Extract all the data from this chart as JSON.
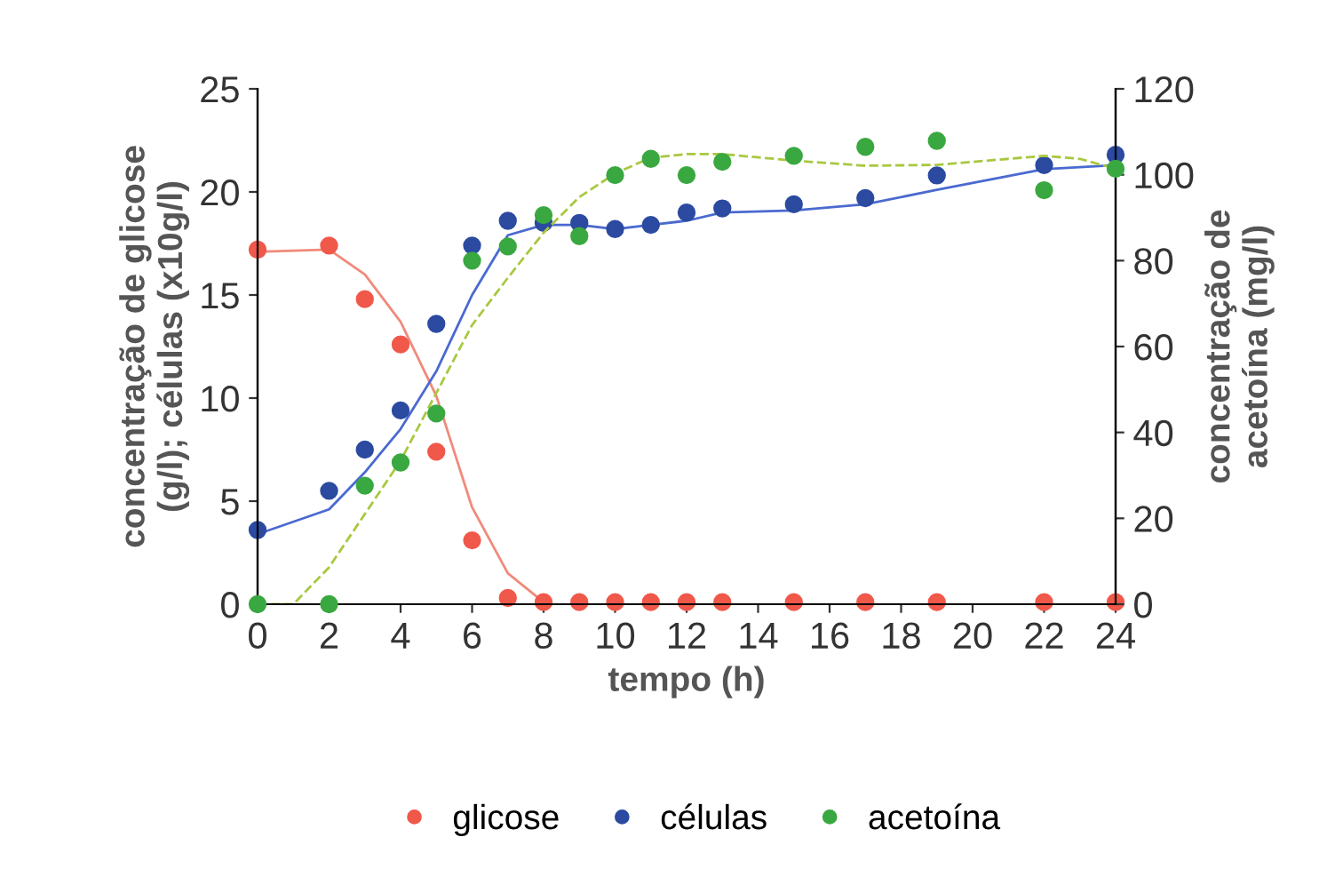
{
  "chart_data": {
    "type": "scatter",
    "xlabel": "tempo (h)",
    "ylabel": "concentração de glicose\n(g/l); células (x10g/l)",
    "y2label": "concentração de\nacetoína (mg/l)",
    "xlim": [
      0,
      24
    ],
    "xticks": [
      0,
      2,
      4,
      6,
      8,
      10,
      12,
      14,
      16,
      18,
      20,
      22,
      24
    ],
    "ylim": [
      0,
      25
    ],
    "yticks": [
      0,
      5,
      10,
      15,
      20,
      25
    ],
    "y2lim": [
      0,
      120
    ],
    "y2ticks": [
      0,
      20,
      40,
      60,
      80,
      100,
      120
    ],
    "grid": false,
    "legend": "bottom",
    "marker": "circle",
    "series": [
      {
        "name": "glicose",
        "color": "#f0584a",
        "x": [
          0,
          2,
          3,
          4,
          5,
          6,
          7,
          8,
          9,
          10,
          11,
          12,
          13,
          15,
          17,
          19,
          22,
          24
        ],
        "values": [
          17.2,
          17.4,
          14.8,
          12.6,
          7.4,
          3.1,
          0.3,
          0.1,
          0.1,
          0.1,
          0.1,
          0.1,
          0.1,
          0.1,
          0.1,
          0.1,
          0.1,
          0.1
        ]
      },
      {
        "name": "células",
        "color": "#2b4aa0",
        "x": [
          0,
          2,
          3,
          4,
          5,
          6,
          7,
          8,
          9,
          10,
          11,
          12,
          13,
          15,
          17,
          19,
          22,
          24
        ],
        "values": [
          3.6,
          5.5,
          7.5,
          9.4,
          13.6,
          17.4,
          18.6,
          18.5,
          18.5,
          18.2,
          18.4,
          19.0,
          19.2,
          19.4,
          19.7,
          20.8,
          21.3,
          21.8
        ]
      },
      {
        "name": "acetoína",
        "color": "#3aa840",
        "axis": "y2",
        "x": [
          0,
          2,
          3,
          4,
          5,
          6,
          7,
          8,
          9,
          10,
          11,
          12,
          13,
          15,
          17,
          19,
          22,
          24
        ],
        "values": [
          0,
          0,
          27.6,
          33.0,
          44.4,
          80.0,
          83.3,
          90.6,
          85.7,
          99.9,
          103.7,
          99.9,
          103.0,
          104.4,
          106.5,
          107.9,
          96.4,
          101.4
        ]
      },
      {
        "type": "line",
        "color": "#f08a7a",
        "line_style": "solid",
        "marker": "none",
        "x": [
          0,
          2,
          3,
          4,
          5,
          6,
          7,
          8
        ],
        "values": [
          17.1,
          17.2,
          16.0,
          13.7,
          10.1,
          4.7,
          1.5,
          0.1
        ]
      },
      {
        "type": "line",
        "color": "#4a6ad0",
        "line_style": "solid",
        "marker": "none",
        "x": [
          0,
          2,
          3,
          4,
          5,
          6,
          7,
          8,
          9,
          10,
          11,
          12,
          13,
          15,
          17,
          19,
          22,
          24
        ],
        "values": [
          3.4,
          4.6,
          6.4,
          8.5,
          11.3,
          15.0,
          17.9,
          18.4,
          18.4,
          18.2,
          18.4,
          18.6,
          19.0,
          19.1,
          19.4,
          20.1,
          21.1,
          21.3
        ]
      },
      {
        "type": "line",
        "color": "#a8c840",
        "axis": "y2",
        "line_style": "dashed",
        "marker": "none",
        "x": [
          0,
          1,
          2,
          3,
          4,
          6,
          7,
          8,
          9,
          10,
          11,
          12,
          13,
          15,
          17,
          19,
          22,
          23,
          24
        ],
        "values": [
          0,
          0,
          8.6,
          21,
          33.4,
          65,
          76,
          86.5,
          94.8,
          100.3,
          104,
          104.8,
          104.8,
          103.3,
          102.1,
          102.3,
          104.4,
          103.7,
          101.4
        ]
      }
    ]
  }
}
